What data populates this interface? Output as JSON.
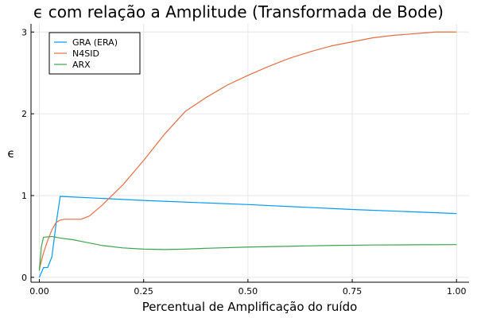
{
  "chart_data": {
    "type": "line",
    "title": "ϵ com relação a Amplitude (Transformada de Bode)",
    "xlabel": "Percentual de Amplificação do ruído",
    "ylabel": "ϵ",
    "xlim": [
      -0.02,
      1.03
    ],
    "ylim": [
      -0.06,
      3.1
    ],
    "xticks": [
      0.0,
      0.25,
      0.5,
      0.75,
      1.0
    ],
    "xtick_labels": [
      "0.00",
      "0.25",
      "0.50",
      "0.75",
      "1.00"
    ],
    "yticks": [
      0,
      1,
      2,
      3
    ],
    "ytick_labels": [
      "0",
      "1",
      "2",
      "3"
    ],
    "grid": true,
    "legend_position": "top-left",
    "series": [
      {
        "name": "GRA (ERA)",
        "color": "#009af9",
        "x": [
          0.0,
          0.01,
          0.02,
          0.03,
          0.04,
          0.05,
          0.25,
          0.5,
          0.75,
          1.0
        ],
        "y": [
          0.0,
          0.12,
          0.12,
          0.25,
          0.65,
          0.99,
          0.94,
          0.89,
          0.83,
          0.78
        ]
      },
      {
        "name": "N4SID",
        "color": "#e26f46",
        "x": [
          0.0,
          0.01,
          0.02,
          0.03,
          0.04,
          0.05,
          0.06,
          0.08,
          0.1,
          0.12,
          0.15,
          0.18,
          0.2,
          0.25,
          0.3,
          0.35,
          0.4,
          0.45,
          0.5,
          0.55,
          0.6,
          0.65,
          0.7,
          0.75,
          0.8,
          0.85,
          0.9,
          0.95,
          1.0
        ],
        "y": [
          0.1,
          0.3,
          0.45,
          0.58,
          0.67,
          0.7,
          0.71,
          0.71,
          0.71,
          0.75,
          0.88,
          1.03,
          1.13,
          1.43,
          1.75,
          2.03,
          2.2,
          2.35,
          2.47,
          2.58,
          2.68,
          2.76,
          2.83,
          2.88,
          2.93,
          2.96,
          2.98,
          3.0,
          3.0
        ]
      },
      {
        "name": "ARX",
        "color": "#3da44d",
        "x": [
          0.0,
          0.005,
          0.01,
          0.03,
          0.05,
          0.08,
          0.1,
          0.15,
          0.2,
          0.25,
          0.3,
          0.35,
          0.4,
          0.5,
          0.6,
          0.7,
          0.8,
          0.9,
          1.0
        ],
        "y": [
          0.08,
          0.38,
          0.49,
          0.5,
          0.48,
          0.46,
          0.44,
          0.39,
          0.36,
          0.345,
          0.34,
          0.345,
          0.355,
          0.37,
          0.38,
          0.39,
          0.395,
          0.398,
          0.4
        ]
      }
    ]
  }
}
